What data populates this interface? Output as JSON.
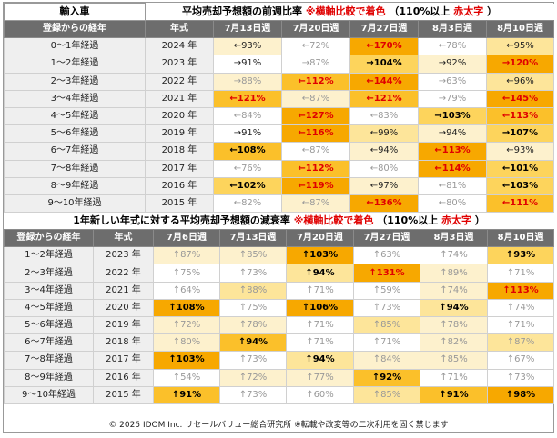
{
  "table1": {
    "corner_label": "輸入車",
    "title_main": "平均売却予想額の前週比率",
    "title_note": "※横軸比較で着色",
    "title_rule_a": "（110%以上",
    "title_rule_b": "赤太字",
    "title_rule_c": "）",
    "header_age": "登録からの経年",
    "header_year": "年式",
    "weeks": [
      "7月13日週",
      "7月20日週",
      "7月27日週",
      "8月3日週",
      "8月10日週"
    ],
    "rows": [
      {
        "age": "0～1年経過",
        "year": "2024 年",
        "cells": [
          [
            "←93%",
            "c1",
            "mid"
          ],
          [
            "←72%",
            "c0",
            "lo"
          ],
          [
            "←170%",
            "c5",
            "hi"
          ],
          [
            "←78%",
            "c0",
            "lo"
          ],
          [
            "←95%",
            "c2",
            "mid"
          ]
        ]
      },
      {
        "age": "1～2年経過",
        "year": "2023 年",
        "cells": [
          [
            "→91%",
            "c0",
            "mid"
          ],
          [
            "→87%",
            "c0",
            "lo"
          ],
          [
            "→104%",
            "c3",
            "strong"
          ],
          [
            "→92%",
            "c1",
            "mid"
          ],
          [
            "→120%",
            "c5",
            "hi"
          ]
        ]
      },
      {
        "age": "2～3年経過",
        "year": "2022 年",
        "cells": [
          [
            "→88%",
            "c1",
            "lo"
          ],
          [
            "←112%",
            "c4",
            "hi"
          ],
          [
            "←144%",
            "c5",
            "hi"
          ],
          [
            "→63%",
            "c0",
            "lo"
          ],
          [
            "←96%",
            "c2",
            "mid"
          ]
        ]
      },
      {
        "age": "3～4年経過",
        "year": "2021 年",
        "cells": [
          [
            "←121%",
            "c4",
            "hi"
          ],
          [
            "←87%",
            "c1",
            "lo"
          ],
          [
            "←121%",
            "c4",
            "hi"
          ],
          [
            "→79%",
            "c0",
            "lo"
          ],
          [
            "←145%",
            "c5",
            "hi"
          ]
        ]
      },
      {
        "age": "4～5年経過",
        "year": "2020 年",
        "cells": [
          [
            "←84%",
            "c0",
            "lo"
          ],
          [
            "←127%",
            "c5",
            "hi"
          ],
          [
            "←83%",
            "c0",
            "lo"
          ],
          [
            "→103%",
            "c3",
            "strong"
          ],
          [
            "←113%",
            "c4",
            "hi"
          ]
        ]
      },
      {
        "age": "5～6年経過",
        "year": "2019 年",
        "cells": [
          [
            "→91%",
            "c0",
            "mid"
          ],
          [
            "←116%",
            "c5",
            "hi"
          ],
          [
            "←99%",
            "c2",
            "mid"
          ],
          [
            "→94%",
            "c1",
            "mid"
          ],
          [
            "→107%",
            "c3",
            "strong"
          ]
        ]
      },
      {
        "age": "6～7年経過",
        "year": "2018 年",
        "cells": [
          [
            "←108%",
            "c4",
            "strong"
          ],
          [
            "←87%",
            "c0",
            "lo"
          ],
          [
            "←94%",
            "c1",
            "mid"
          ],
          [
            "←113%",
            "c5",
            "hi"
          ],
          [
            "←93%",
            "c1",
            "mid"
          ]
        ]
      },
      {
        "age": "7～8年経過",
        "year": "2017 年",
        "cells": [
          [
            "←76%",
            "c0",
            "lo"
          ],
          [
            "←112%",
            "c4",
            "hi"
          ],
          [
            "←80%",
            "c0",
            "lo"
          ],
          [
            "←114%",
            "c5",
            "hi"
          ],
          [
            "←101%",
            "c3",
            "strong"
          ]
        ]
      },
      {
        "age": "8～9年経過",
        "year": "2016 年",
        "cells": [
          [
            "←102%",
            "c3",
            "strong"
          ],
          [
            "←119%",
            "c5",
            "hi"
          ],
          [
            "←97%",
            "c1",
            "mid"
          ],
          [
            "←81%",
            "c0",
            "lo"
          ],
          [
            "←103%",
            "c3",
            "strong"
          ]
        ]
      },
      {
        "age": "9～10年経過",
        "year": "2015 年",
        "cells": [
          [
            "←82%",
            "c0",
            "lo"
          ],
          [
            "←87%",
            "c1",
            "lo"
          ],
          [
            "←136%",
            "c5",
            "hi"
          ],
          [
            "←80%",
            "c0",
            "lo"
          ],
          [
            "←111%",
            "c4",
            "hi"
          ]
        ]
      }
    ]
  },
  "table2": {
    "title_main": "1年新しい年式に対する平均売却予想額の減衰率",
    "title_note": "※横軸比較で着色",
    "title_rule_a": "（110%以上",
    "title_rule_b": "赤太字",
    "title_rule_c": "）",
    "header_age": "登録からの経年",
    "header_year": "年式",
    "weeks": [
      "7月6日週",
      "7月13日週",
      "7月20日週",
      "7月27日週",
      "8月3日週",
      "8月10日週"
    ],
    "rows": [
      {
        "age": "1～2年経過",
        "year": "2023 年",
        "cells": [
          [
            "↑87%",
            "c1",
            "lo"
          ],
          [
            "↑85%",
            "c1",
            "lo"
          ],
          [
            "↑103%",
            "c5",
            "strong"
          ],
          [
            "↑63%",
            "c0",
            "lo"
          ],
          [
            "↑74%",
            "c0",
            "lo"
          ],
          [
            "↑93%",
            "c3",
            "strong"
          ]
        ]
      },
      {
        "age": "2～3年経過",
        "year": "2022 年",
        "cells": [
          [
            "↑75%",
            "c0",
            "lo"
          ],
          [
            "↑73%",
            "c0",
            "lo"
          ],
          [
            "↑94%",
            "c2",
            "strong"
          ],
          [
            "↑131%",
            "c5",
            "hi"
          ],
          [
            "↑89%",
            "c1",
            "lo"
          ],
          [
            "↑71%",
            "c0",
            "lo"
          ]
        ]
      },
      {
        "age": "3～4年経過",
        "year": "2021 年",
        "cells": [
          [
            "↑64%",
            "c0",
            "lo"
          ],
          [
            "↑88%",
            "c2",
            "lo"
          ],
          [
            "↑71%",
            "c0",
            "lo"
          ],
          [
            "↑59%",
            "c0",
            "lo"
          ],
          [
            "↑74%",
            "c1",
            "lo"
          ],
          [
            "↑113%",
            "c5",
            "hi"
          ]
        ]
      },
      {
        "age": "4～5年経過",
        "year": "2020 年",
        "cells": [
          [
            "↑108%",
            "c5",
            "strong"
          ],
          [
            "↑75%",
            "c0",
            "lo"
          ],
          [
            "↑106%",
            "c5",
            "strong"
          ],
          [
            "↑73%",
            "c0",
            "lo"
          ],
          [
            "↑94%",
            "c2",
            "strong"
          ],
          [
            "↑74%",
            "c0",
            "lo"
          ]
        ]
      },
      {
        "age": "5～6年経過",
        "year": "2019 年",
        "cells": [
          [
            "↑72%",
            "c1",
            "lo"
          ],
          [
            "↑78%",
            "c1",
            "lo"
          ],
          [
            "↑71%",
            "c0",
            "lo"
          ],
          [
            "↑85%",
            "c2",
            "lo"
          ],
          [
            "↑78%",
            "c1",
            "lo"
          ],
          [
            "↑71%",
            "c0",
            "lo"
          ]
        ]
      },
      {
        "age": "6～7年経過",
        "year": "2018 年",
        "cells": [
          [
            "↑80%",
            "c1",
            "lo"
          ],
          [
            "↑94%",
            "c4",
            "strong"
          ],
          [
            "↑71%",
            "c0",
            "lo"
          ],
          [
            "↑71%",
            "c0",
            "lo"
          ],
          [
            "↑82%",
            "c1",
            "lo"
          ],
          [
            "↑87%",
            "c2",
            "lo"
          ]
        ]
      },
      {
        "age": "7～8年経過",
        "year": "2017 年",
        "cells": [
          [
            "↑103%",
            "c5",
            "strong"
          ],
          [
            "↑73%",
            "c0",
            "lo"
          ],
          [
            "↑94%",
            "c2",
            "strong"
          ],
          [
            "↑84%",
            "c1",
            "lo"
          ],
          [
            "↑85%",
            "c1",
            "lo"
          ],
          [
            "↑67%",
            "c0",
            "lo"
          ]
        ]
      },
      {
        "age": "8～9年経過",
        "year": "2016 年",
        "cells": [
          [
            "↑54%",
            "c0",
            "lo"
          ],
          [
            "↑72%",
            "c1",
            "lo"
          ],
          [
            "↑77%",
            "c1",
            "lo"
          ],
          [
            "↑92%",
            "c4",
            "strong"
          ],
          [
            "↑71%",
            "c0",
            "lo"
          ],
          [
            "↑73%",
            "c0",
            "lo"
          ]
        ]
      },
      {
        "age": "9～10年経過",
        "year": "2015 年",
        "cells": [
          [
            "↑91%",
            "c4",
            "strong"
          ],
          [
            "↑73%",
            "c0",
            "lo"
          ],
          [
            "↑60%",
            "c0",
            "lo"
          ],
          [
            "↑85%",
            "c2",
            "lo"
          ],
          [
            "↑91%",
            "c4",
            "strong"
          ],
          [
            "↑98%",
            "c5",
            "strong"
          ]
        ]
      }
    ]
  },
  "footer": "© 2025 IDOM Inc. リセールバリュー総合研究所 ※転載や改変等の二次利用を固く禁じます",
  "colors": {
    "header_bg": "#6d6d6d",
    "label_bg": "#efefef",
    "heat_1": "#fdf1cd",
    "heat_2": "#fde59a",
    "heat_3": "#fdd45c",
    "heat_4": "#fbc02a",
    "heat_5": "#f7a800",
    "highlight_text": "#e00000"
  }
}
